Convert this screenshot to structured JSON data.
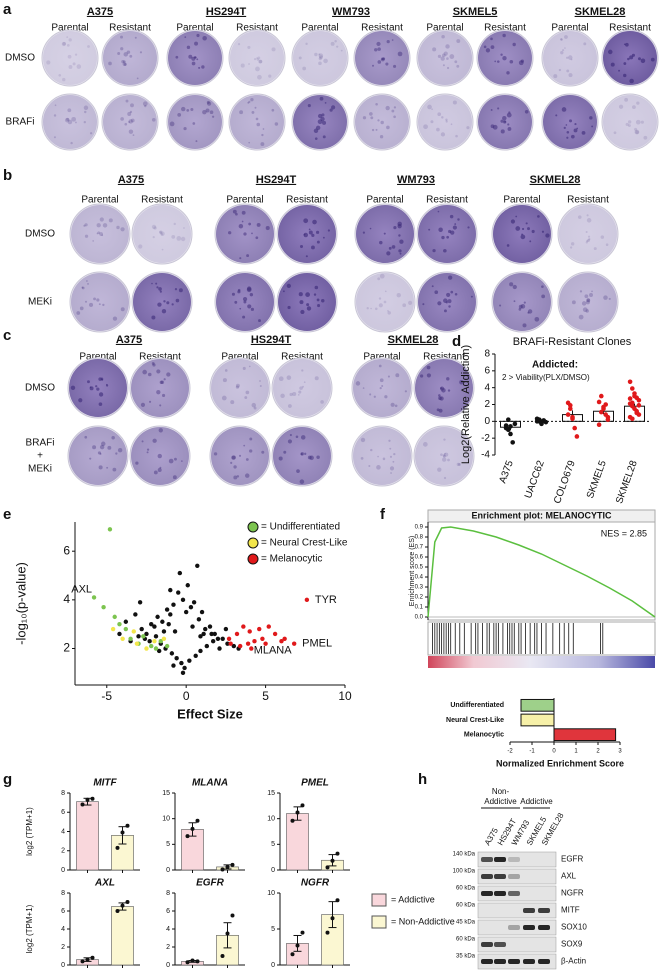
{
  "panel_labels": [
    "a",
    "b",
    "c",
    "d",
    "e",
    "f",
    "g",
    "h"
  ],
  "plates_a": {
    "columns": [
      "Parental",
      "Resistant"
    ],
    "rows": [
      [
        "DMSO"
      ],
      [
        "BRAFi"
      ]
    ],
    "cell_lines": [
      {
        "name": "A375",
        "resistant_color": "#111111"
      },
      {
        "name": "HS294T",
        "resistant_color": "#111111"
      },
      {
        "name": "WM793",
        "resistant_color": "#111111"
      },
      {
        "name": "SKMEL5",
        "resistant_color": "#e0191b"
      },
      {
        "name": "SKMEL28",
        "resistant_color": "#e0191b"
      }
    ]
  },
  "plates_b": {
    "columns": [
      "Parental",
      "Resistant"
    ],
    "rows": [
      [
        "DMSO"
      ],
      [
        "MEKi"
      ]
    ],
    "cell_lines": [
      {
        "name": "A375",
        "resistant_color": "#111111"
      },
      {
        "name": "HS294T",
        "resistant_color": "#111111"
      },
      {
        "name": "WM793",
        "resistant_color": "#111111"
      },
      {
        "name": "SKMEL28",
        "resistant_color": "#e0191b"
      }
    ]
  },
  "plates_c": {
    "columns": [
      "Parental",
      "Resistant"
    ],
    "rows": [
      [
        "DMSO"
      ],
      [
        "BRAFi",
        "+",
        "MEKi"
      ]
    ],
    "cell_lines": [
      {
        "name": "A375",
        "resistant_color": "#111111"
      },
      {
        "name": "HS294T",
        "resistant_color": "#111111"
      },
      {
        "name": "SKMEL28",
        "resistant_color": "#e0191b"
      }
    ]
  },
  "chart_data": [
    {
      "type": "dotbar",
      "title": "BRAFi-Resistant Clones",
      "ylabel": "Log2(Relative Addiction)",
      "annotation": "Addicted:",
      "annotation_color": "#e0191b",
      "subannotation": "2 > Viability(PLX/DMSO)",
      "categories": [
        "A375",
        "UACC62",
        "COLO679",
        "SKMEL5",
        "SKMEL28"
      ],
      "values": [
        -0.7,
        0,
        0.8,
        1.2,
        1.8
      ],
      "errors": [
        0.35,
        0.1,
        0.5,
        0.35,
        0.3
      ],
      "point_colors": [
        "#111111",
        "#111111",
        "#e0191b",
        "#e0191b",
        "#e0191b"
      ],
      "points": [
        [
          -0.5,
          -1.0,
          -1.5,
          -2.5,
          -0.3,
          -0.8,
          0.2,
          -0.6
        ],
        [
          0,
          0.2,
          -0.2,
          0.1,
          -0.1,
          0.3,
          0,
          -0.3,
          0.1
        ],
        [
          2.2,
          1.5,
          0.5,
          -0.8,
          -1.8,
          0.8,
          1.9,
          0.3
        ],
        [
          2.3,
          3.0,
          1.7,
          0.8,
          0.5,
          -0.4,
          1.1,
          1.5,
          2.0,
          0.2
        ],
        [
          4.7,
          3.9,
          3.3,
          2.8,
          2.5,
          2.1,
          1.8,
          1.5,
          1.2,
          0.8,
          0.5,
          2.2,
          3.0,
          1.0,
          1.9,
          2.7,
          0.3
        ]
      ],
      "reference_line": 0,
      "ylim": [
        -4,
        8
      ],
      "yticks": [
        -4,
        -2,
        0,
        2,
        4,
        6,
        8
      ]
    },
    {
      "type": "scatter",
      "xlabel": "Effect Size",
      "ylabel": "-log₁₀(p-value)",
      "xlim": [
        -7,
        10
      ],
      "xticks": [
        -5,
        0,
        5,
        10
      ],
      "ylim": [
        0.5,
        7.2
      ],
      "yticks": [
        2,
        4,
        6
      ],
      "series": [
        {
          "name": null,
          "color": "#111111",
          "x": [
            -3.5,
            -3,
            -2.8,
            -2.5,
            -2.2,
            -2,
            -1.8,
            -1.5,
            -1.2,
            -1,
            -0.8,
            -0.5,
            -0.2,
            0,
            0.3,
            0.5,
            0.8,
            1,
            1.2,
            1.5,
            1.8,
            2,
            2.3,
            2.6,
            3,
            3.3,
            -1.6,
            -1.3,
            -0.9,
            -0.6,
            -0.3,
            0.2,
            0.6,
            0.9,
            1.3,
            1.7,
            2.1,
            -2.3,
            -1.9,
            -0.7,
            0.4,
            1.1,
            -0.4,
            0.1,
            -1,
            -1.1,
            0.7,
            -2.6,
            2.5,
            -0.2,
            -4.2,
            -3.8,
            -3.2,
            -2.9,
            -1.4,
            -0.1,
            0.9,
            1.6,
            -0.8,
            -1.7
          ],
          "values": [
            2.3,
            2.5,
            2.8,
            2.6,
            3.0,
            2.9,
            3.3,
            3.1,
            3.6,
            3.4,
            3.8,
            4.3,
            4.0,
            3.5,
            3.7,
            3.9,
            3.2,
            3.5,
            2.8,
            2.9,
            2.6,
            2.4,
            2.4,
            2.2,
            2.1,
            2.0,
            2.2,
            2.0,
            1.8,
            1.6,
            1.4,
            1.5,
            1.7,
            1.9,
            2.1,
            2.3,
            2.0,
            2.3,
            2.5,
            2.7,
            2.9,
            2.6,
            5.1,
            4.6,
            4.4,
            3.0,
            5.4,
            2.4,
            2.8,
            1.0,
            2.6,
            3.1,
            3.4,
            3.9,
            2.7,
            1.2,
            2.5,
            2.6,
            1.3,
            1.9
          ]
        },
        {
          "name": "= Undifferentiated",
          "color": "#7cc44f",
          "x": [
            -4.8,
            -5.8,
            -5.2,
            -4.5,
            -4.2,
            -3.8,
            -3.5,
            -3.0,
            -2.7,
            -2.2,
            -1.9,
            -1.6,
            -1.2
          ],
          "values": [
            6.9,
            4.1,
            3.7,
            3.3,
            3.0,
            2.8,
            2.4,
            2.2,
            2.5,
            2.1,
            2.0,
            2.3,
            2.1
          ]
        },
        {
          "name": "= Neural Crest-Like",
          "color": "#f3e64b",
          "x": [
            -4.6,
            -4.0,
            -3.3,
            -3.1,
            -2.5,
            -2.0,
            -1.4
          ],
          "values": [
            2.8,
            2.4,
            2.7,
            2.2,
            2.0,
            2.3,
            2.4
          ]
        },
        {
          "name": "= Melanocytic",
          "color": "#e0191b",
          "x": [
            7.6,
            6.2,
            6.8,
            5.2,
            4.6,
            4.0,
            3.6,
            3.2,
            2.8,
            4.8,
            5.6,
            4.3,
            3.9,
            3.4,
            2.7,
            5.0,
            4.1,
            6.0
          ],
          "values": [
            4.0,
            2.4,
            2.2,
            2.9,
            2.8,
            2.7,
            2.9,
            2.6,
            2.2,
            2.4,
            2.6,
            2.3,
            2.2,
            2.1,
            2.4,
            2.2,
            2.0,
            2.3
          ]
        }
      ],
      "annotations": [
        {
          "text": "AXL",
          "x": -5.8,
          "y": 4.1
        },
        {
          "text": "TYR",
          "x": 7.6,
          "y": 4.0
        },
        {
          "text": "PMEL",
          "x": 6.8,
          "y": 2.2
        },
        {
          "text": "MLANA",
          "x": 6.2,
          "y": 2.4
        }
      ]
    },
    {
      "type": "line",
      "title": "Enrichment plot: MELANOCYTIC",
      "annotation": "NES = 2.85",
      "ylabel": "Enrichment score (ES)",
      "color": "#5bbf3f",
      "x": [
        0,
        3,
        6,
        10,
        20,
        30,
        40,
        50,
        60,
        70,
        80,
        90,
        100
      ],
      "values": [
        0,
        0.75,
        0.89,
        0.9,
        0.86,
        0.8,
        0.72,
        0.63,
        0.52,
        0.41,
        0.29,
        0.16,
        0
      ],
      "hits": [
        2,
        3,
        4,
        5,
        6,
        7,
        8,
        9,
        10,
        12,
        14,
        16,
        19,
        21,
        22,
        24,
        26,
        27,
        29,
        30,
        31,
        33,
        35,
        36,
        37,
        38,
        40,
        41,
        43,
        45,
        47,
        48,
        50,
        52,
        55,
        58,
        60,
        62,
        64,
        76,
        77
      ],
      "xlim": [
        0,
        100
      ],
      "ylim": [
        -0.03,
        0.95
      ],
      "yticks": [
        {
          "value": 0,
          "label": "0.0"
        },
        {
          "value": 0.1,
          "label": "0.1"
        },
        {
          "value": 0.2,
          "label": "0.2"
        },
        {
          "value": 0.3,
          "label": "0.3"
        },
        {
          "value": 0.4,
          "label": "0.4"
        },
        {
          "value": 0.5,
          "label": "0.5"
        },
        {
          "value": 0.6,
          "label": "0.6"
        },
        {
          "value": 0.7,
          "label": "0.7"
        },
        {
          "value": 0.8,
          "label": "0.8"
        },
        {
          "value": 0.9,
          "label": "0.9"
        }
      ]
    },
    {
      "type": "hbar",
      "xlabel": "Normalized Enrichment Score",
      "categories": [
        "Undifferentiated",
        "Neural Crest-Like",
        "Melanocytic"
      ],
      "values": [
        -1.5,
        -1.5,
        2.8
      ],
      "colors": [
        "#9ed08a",
        "#f6f0a8",
        "#e0353c"
      ],
      "xlim": [
        -2,
        3
      ],
      "xticks": [
        -2,
        -1,
        0,
        1,
        2,
        3
      ]
    },
    {
      "type": "bar",
      "title": "MITF",
      "ylabel": "log2 (TPM+1)",
      "categories": [
        null,
        null
      ],
      "values": [
        7.1,
        3.6
      ],
      "errors": [
        0.35,
        0.9
      ],
      "points": [
        [
          6.8,
          7.3,
          7.4
        ],
        [
          2.3,
          3.9,
          4.6
        ]
      ],
      "colors": [
        "#f9d7dc",
        "#fbf7d2"
      ],
      "ylim": [
        0,
        8
      ],
      "yticks": [
        0,
        2,
        4,
        6,
        8
      ]
    },
    {
      "type": "bar",
      "title": "MLANA",
      "categories": [
        null,
        null
      ],
      "values": [
        7.9,
        0.6
      ],
      "errors": [
        1.3,
        0.4
      ],
      "points": [
        [
          6.6,
          8.0,
          9.6
        ],
        [
          0.1,
          0.6,
          1.0
        ]
      ],
      "colors": [
        "#f9d7dc",
        "#fbf7d2"
      ],
      "ylim": [
        0,
        15
      ],
      "yticks": [
        0,
        5,
        10,
        15
      ]
    },
    {
      "type": "bar",
      "title": "PMEL",
      "categories": [
        null,
        null
      ],
      "values": [
        11,
        1.9
      ],
      "errors": [
        1.3,
        1.1
      ],
      "points": [
        [
          9.6,
          11.2,
          12.6
        ],
        [
          0.5,
          1.8,
          3.2
        ]
      ],
      "colors": [
        "#f9d7dc",
        "#fbf7d2"
      ],
      "ylim": [
        0,
        15
      ],
      "yticks": [
        0,
        5,
        10,
        15
      ]
    },
    {
      "type": "bar",
      "title": "AXL",
      "ylabel": "log2 (TPM+1)",
      "categories": [
        null,
        null
      ],
      "values": [
        0.6,
        6.5
      ],
      "errors": [
        0.2,
        0.4
      ],
      "points": [
        [
          0.4,
          0.6,
          0.8
        ],
        [
          6.0,
          6.6,
          7.0
        ]
      ],
      "colors": [
        "#f9d7dc",
        "#fbf7d2"
      ],
      "ylim": [
        0,
        8
      ],
      "yticks": [
        0,
        2,
        4,
        6,
        8
      ]
    },
    {
      "type": "bar",
      "title": "EGFR",
      "categories": [
        null,
        null
      ],
      "values": [
        0.4,
        3.3
      ],
      "errors": [
        0.1,
        1.4
      ],
      "points": [
        [
          0.3,
          0.5,
          0.4
        ],
        [
          1.0,
          3.5,
          5.5
        ]
      ],
      "colors": [
        "#f9d7dc",
        "#fbf7d2"
      ],
      "ylim": [
        0,
        8
      ],
      "yticks": [
        0,
        2,
        4,
        6,
        8
      ]
    },
    {
      "type": "bar",
      "title": "NGFR",
      "categories": [
        null,
        null
      ],
      "values": [
        3,
        7
      ],
      "errors": [
        1.1,
        1.8
      ],
      "points": [
        [
          1.5,
          2.7,
          4.5
        ],
        [
          4.5,
          6.5,
          9.0
        ]
      ],
      "colors": [
        "#f9d7dc",
        "#fbf7d2"
      ],
      "ylim": [
        0,
        10
      ],
      "yticks": [
        0,
        5,
        10
      ]
    }
  ],
  "panel_g_legend": [
    {
      "label": "= Addictive",
      "color": "#f9d7dc"
    },
    {
      "label": "= Non-Addictive",
      "color": "#fbf7d2"
    }
  ],
  "western": {
    "groups": [
      {
        "label": [
          "Non-",
          "Addictive"
        ]
      },
      {
        "label": [
          "Addictive"
        ]
      }
    ],
    "lanes": [
      {
        "name": "A375",
        "color": "#111111"
      },
      {
        "name": "HS294T",
        "color": "#111111"
      },
      {
        "name": "WM793",
        "color": "#111111"
      },
      {
        "name": "SKMEL5",
        "color": "#e0191b"
      },
      {
        "name": "SKMEL28",
        "color": "#e0191b"
      }
    ],
    "rows": [
      {
        "protein": "EGFR",
        "marker": "140 kDa"
      },
      {
        "protein": "AXL",
        "marker": "100 kDa"
      },
      {
        "protein": "NGFR",
        "marker": "60 kDa"
      },
      {
        "protein": "MITF",
        "marker": "60 kDa"
      },
      {
        "protein": "SOX10",
        "marker": "45 kDa"
      },
      {
        "protein": "SOX9",
        "marker": "60 kDa"
      },
      {
        "protein": "β-Actin",
        "marker": "35 kDa"
      }
    ]
  }
}
